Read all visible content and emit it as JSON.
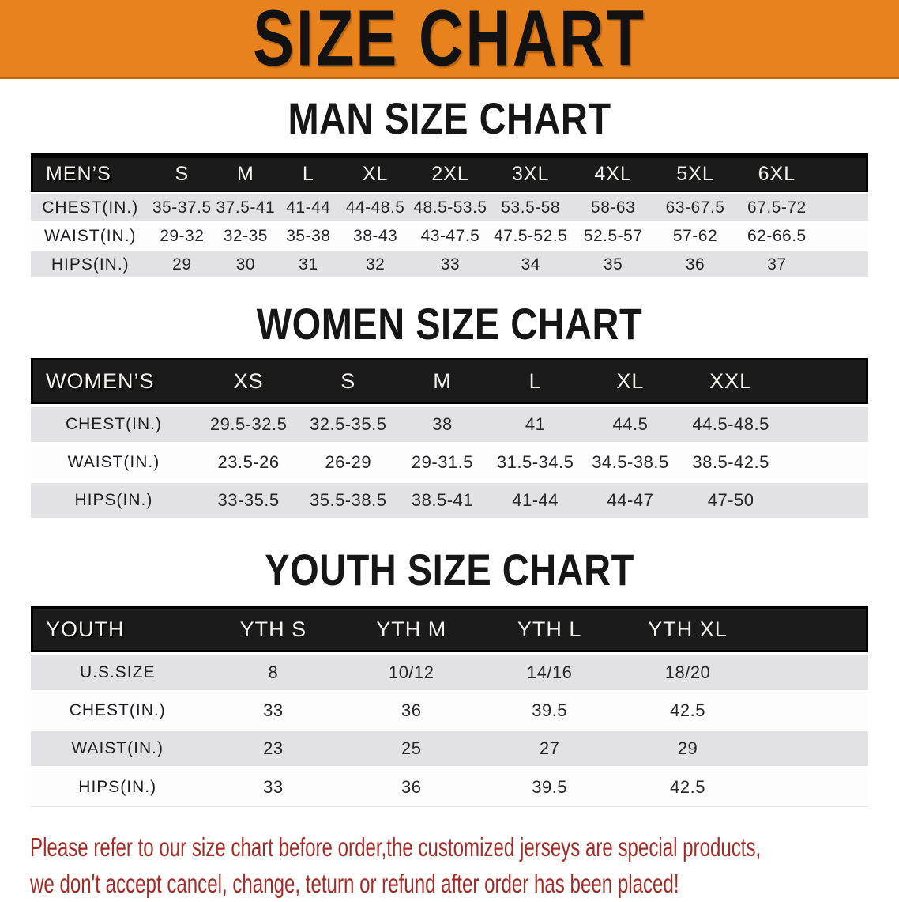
{
  "banner": {
    "title": "SIZE CHART"
  },
  "colors": {
    "banner_bg": "#e8821d",
    "banner_edge": "#c06508",
    "header_bg": "#1b1b1b",
    "header_text": "#f4f2ee",
    "row_alt_bg": "#e2e2e4",
    "row_bg": "#fdfdfd",
    "cell_text": "#26262a",
    "disclaimer_red": "#a72b25"
  },
  "sections": [
    {
      "id": "men",
      "title": "MAN SIZE CHART",
      "corner": "MEN’S",
      "columns": [
        "S",
        "M",
        "L",
        "XL",
        "2XL",
        "3XL",
        "4XL",
        "5XL",
        "6XL"
      ],
      "rows": [
        {
          "label": "CHEST(IN.)",
          "values": [
            "35-37.5",
            "37.5-41",
            "41-44",
            "44-48.5",
            "48.5-53.5",
            "53.5-58",
            "58-63",
            "63-67.5",
            "67.5-72"
          ]
        },
        {
          "label": "WAIST(IN.)",
          "values": [
            "29-32",
            "32-35",
            "35-38",
            "38-43",
            "43-47.5",
            "47.5-52.5",
            "52.5-57",
            "57-62",
            "62-66.5"
          ]
        },
        {
          "label": "HIPS(IN.)",
          "values": [
            "29",
            "30",
            "31",
            "32",
            "33",
            "34",
            "35",
            "36",
            "37"
          ]
        }
      ]
    },
    {
      "id": "women",
      "title": "WOMEN SIZE CHART",
      "corner": "WOMEN’S",
      "columns": [
        "XS",
        "S",
        "M",
        "L",
        "XL",
        "XXL"
      ],
      "rows": [
        {
          "label": "CHEST(IN.)",
          "values": [
            "29.5-32.5",
            "32.5-35.5",
            "38",
            "41",
            "44.5",
            "44.5-48.5"
          ]
        },
        {
          "label": "WAIST(IN.)",
          "values": [
            "23.5-26",
            "26-29",
            "29-31.5",
            "31.5-34.5",
            "34.5-38.5",
            "38.5-42.5"
          ]
        },
        {
          "label": "HIPS(IN.)",
          "values": [
            "33-35.5",
            "35.5-38.5",
            "38.5-41",
            "41-44",
            "44-47",
            "47-50"
          ]
        }
      ]
    },
    {
      "id": "youth",
      "title": "YOUTH SIZE CHART",
      "corner": "YOUTH",
      "columns": [
        "YTH S",
        "YTH M",
        "YTH L",
        "YTH XL"
      ],
      "rows": [
        {
          "label": "U.S.SIZE",
          "values": [
            "8",
            "10/12",
            "14/16",
            "18/20"
          ]
        },
        {
          "label": "CHEST(IN.)",
          "values": [
            "33",
            "36",
            "39.5",
            "42.5"
          ]
        },
        {
          "label": "WAIST(IN.)",
          "values": [
            "23",
            "25",
            "27",
            "29"
          ]
        },
        {
          "label": "HIPS(IN.)",
          "values": [
            "33",
            "36",
            "39.5",
            "42.5"
          ]
        }
      ]
    }
  ],
  "disclaimer": {
    "line1": "Please refer to our size chart before order,the customized jerseys are special products,",
    "line2": "we don't accept cancel, change, teturn or refund after order has been placed!"
  }
}
